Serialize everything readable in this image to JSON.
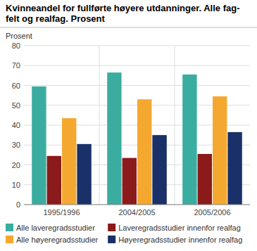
{
  "chart_data": {
    "type": "bar",
    "title": "Kvinneandel for fullførte høyere utdanninger. Alle fag-\nfelt og realfag. Prosent",
    "ylabel": "Prosent",
    "categories": [
      "1995/1996",
      "2004/2005",
      "2005/2006"
    ],
    "series": [
      {
        "name": "Alle laveregradsstudier",
        "color": "#3aada0",
        "values": [
          59.5,
          66.5,
          65.5
        ]
      },
      {
        "name": "Laveregradsstudier innenfor realfag",
        "color": "#8b1a1a",
        "values": [
          24.5,
          23.5,
          25.5
        ]
      },
      {
        "name": "Alle høyeregradsstudier",
        "color": "#f5a830",
        "values": [
          43.5,
          53.0,
          54.5
        ]
      },
      {
        "name": "Høyeregradsstudier innenfor realfag",
        "color": "#1a3068",
        "values": [
          30.5,
          35.0,
          36.5
        ]
      }
    ],
    "ylim": [
      0,
      80
    ],
    "yticks": [
      0,
      10,
      20,
      30,
      40,
      50,
      60,
      70,
      80
    ],
    "grid": true,
    "legend": "bottom"
  }
}
